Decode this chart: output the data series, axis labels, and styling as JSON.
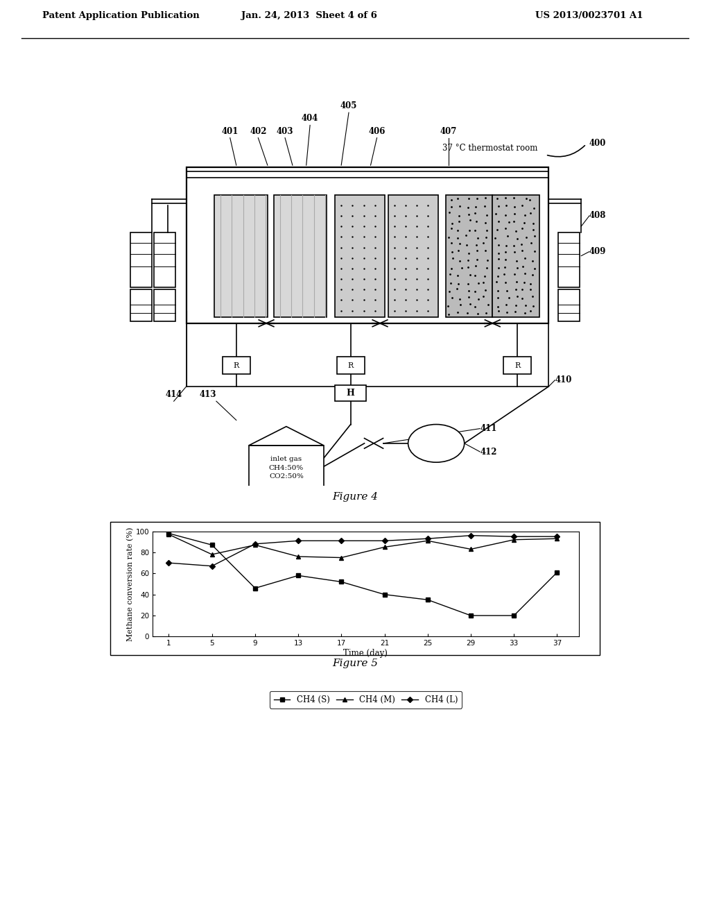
{
  "page_bg": "#ffffff",
  "header_left": "Patent Application Publication",
  "header_mid": "Jan. 24, 2013  Sheet 4 of 6",
  "header_right": "US 2013/0023701 A1",
  "figure4_caption": "Figure 4",
  "figure5_caption": "Figure 5",
  "graph_xlabel": "Time (day)",
  "graph_ylabel": "Methane conversion rate (%)",
  "graph_ylim": [
    0,
    100
  ],
  "graph_yticks": [
    0,
    20,
    40,
    60,
    80,
    100
  ],
  "graph_xticks": [
    1,
    5,
    9,
    13,
    17,
    21,
    25,
    29,
    33,
    37
  ],
  "ch4_s_x": [
    1,
    5,
    9,
    13,
    17,
    21,
    25,
    29,
    33,
    37
  ],
  "ch4_s_y": [
    98,
    87,
    46,
    58,
    52,
    40,
    35,
    20,
    20,
    61
  ],
  "ch4_m_x": [
    1,
    5,
    9,
    13,
    17,
    21,
    25,
    29,
    33,
    37
  ],
  "ch4_m_y": [
    97,
    78,
    87,
    76,
    75,
    85,
    91,
    83,
    92,
    93
  ],
  "ch4_l_x": [
    1,
    5,
    9,
    13,
    17,
    21,
    25,
    29,
    33,
    37
  ],
  "ch4_l_y": [
    70,
    67,
    88,
    91,
    91,
    91,
    93,
    96,
    95,
    95
  ],
  "legend_labels": [
    "CH4 (S)",
    "CH4 (M)",
    "CH4 (L)"
  ],
  "thermostat_text": "37 °C thermostat room",
  "inlet_gas_text": "inlet gas\nCH4:50%\nCO2:50%"
}
